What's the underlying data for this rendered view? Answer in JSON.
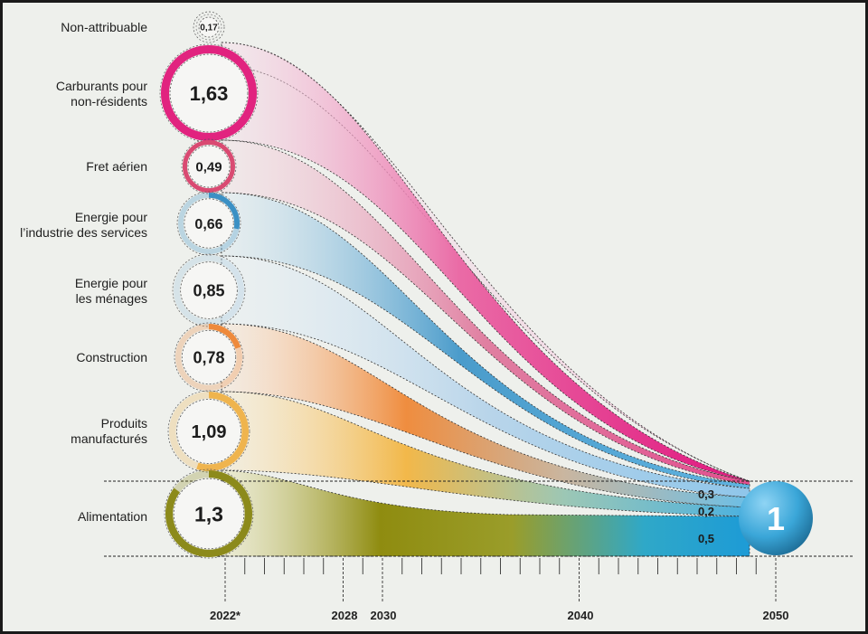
{
  "chart_data": {
    "type": "area",
    "title": "",
    "start_label": "2022*",
    "x_ticks": [
      "2022*",
      "2028",
      "2030",
      "2040",
      "2050"
    ],
    "series": [
      {
        "name": "Non-attribuable",
        "value_2022": "0,17",
        "color": "#c8c8c8"
      },
      {
        "name": "Carburants pour\nnon-résidents",
        "value_2022": "1,63",
        "color": "#e1237f"
      },
      {
        "name": "Fret aérien",
        "value_2022": "0,49",
        "color": "#d94a72"
      },
      {
        "name": "Energie pour\nl’industrie des services",
        "value_2022": "0,66",
        "color": "#3b90c4"
      },
      {
        "name": "Energie pour\nles ménages",
        "value_2022": "0,85",
        "color": "#9cc3df"
      },
      {
        "name": "Construction",
        "value_2022": "0,78",
        "color": "#ee8a3c"
      },
      {
        "name": "Produits\nmanufacturés",
        "value_2022": "1,09",
        "color": "#efb44e"
      },
      {
        "name": "Alimentation",
        "value_2022": "1,3",
        "color": "#8c8a1b"
      }
    ],
    "end_2050": {
      "total": "1",
      "breakdown": [
        "0,3",
        "0,2",
        "0,5"
      ]
    }
  }
}
